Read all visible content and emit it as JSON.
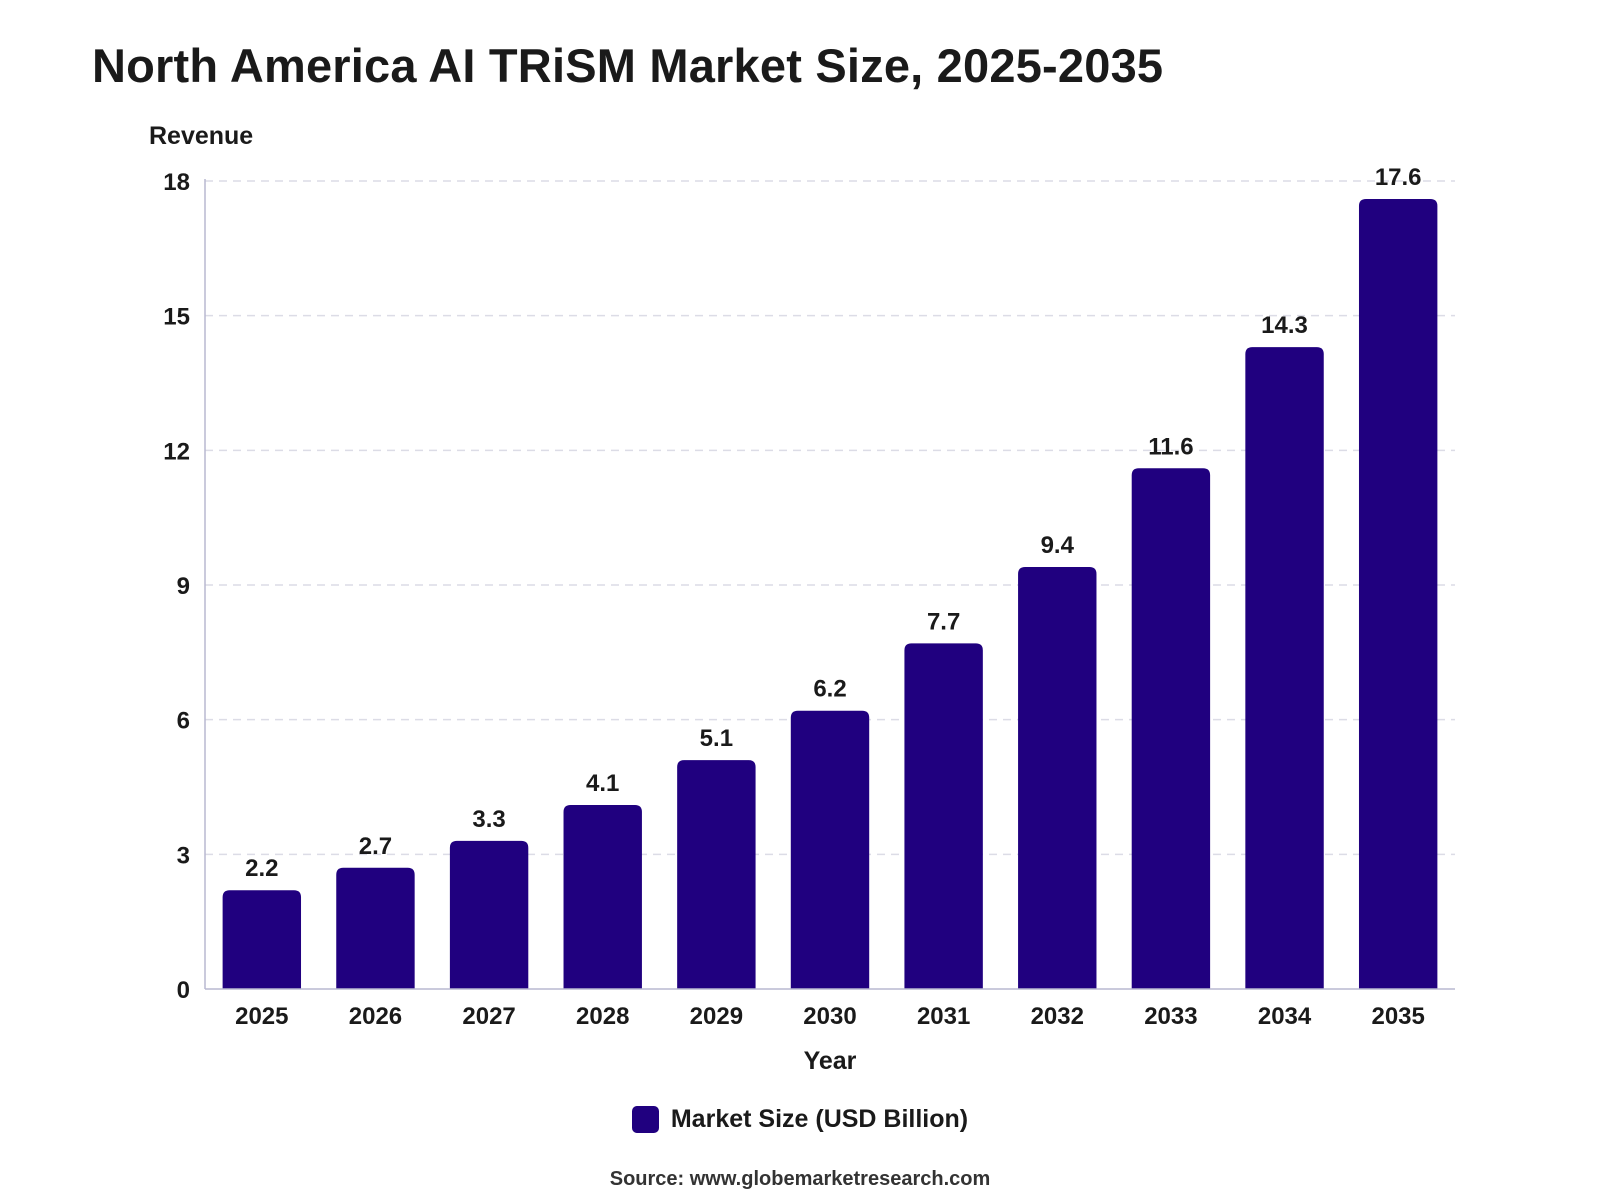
{
  "colors": {
    "bar": "#20007f",
    "grid": "#dcdce6",
    "axis": "#b8b8d0",
    "text": "#1a1a1a"
  },
  "chart_data": {
    "type": "bar",
    "title": "North America AI TRiSM Market Size, 2025-2035",
    "xlabel": "Year",
    "ylabel": "Revenue",
    "categories": [
      "2025",
      "2026",
      "2027",
      "2028",
      "2029",
      "2030",
      "2031",
      "2032",
      "2033",
      "2034",
      "2035"
    ],
    "series": [
      {
        "name": "Market Size (USD Billion)",
        "values": [
          2.2,
          2.7,
          3.3,
          4.1,
          5.1,
          6.2,
          7.7,
          9.4,
          11.6,
          14.3,
          17.6
        ]
      }
    ],
    "value_labels": [
      "2.2",
      "2.7",
      "3.3",
      "4.1",
      "5.1",
      "6.2",
      "7.7",
      "9.4",
      "11.6",
      "14.3",
      "17.6"
    ],
    "ylim": [
      0,
      18
    ],
    "yticks": [
      0,
      3,
      6,
      9,
      12,
      15,
      18
    ],
    "ytick_labels": [
      "0",
      "3",
      "6",
      "9",
      "12",
      "15",
      "18"
    ],
    "grid": "horizontal dashed",
    "legend_position": "bottom-center"
  },
  "legend": {
    "label": "Market Size (USD Billion)"
  },
  "source": "Source: www.globemarketresearch.com"
}
